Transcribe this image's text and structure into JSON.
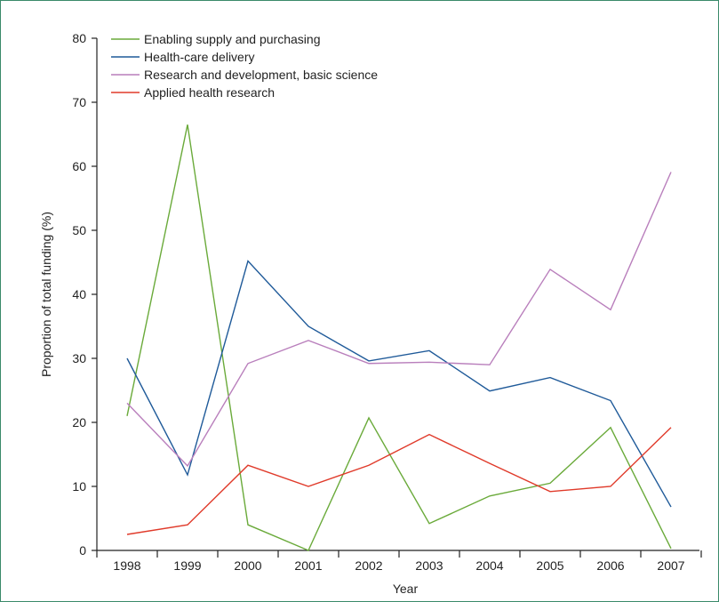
{
  "chart_data": {
    "type": "line",
    "xlabel": "Year",
    "ylabel": "Proportion of total funding (%)",
    "categories": [
      "1998",
      "1999",
      "2000",
      "2001",
      "2002",
      "2003",
      "2004",
      "2005",
      "2006",
      "2007"
    ],
    "ylim": [
      0,
      80
    ],
    "yticks": [
      0,
      10,
      20,
      30,
      40,
      50,
      60,
      70,
      80
    ],
    "grid": false,
    "legend_position": "top-left",
    "series": [
      {
        "name": "Enabling supply and purchasing",
        "color": "#6aaa3a",
        "values": [
          21,
          66.5,
          4,
          0,
          20.7,
          4.2,
          8.5,
          10.5,
          19.2,
          0.3
        ]
      },
      {
        "name": "Health-care delivery",
        "color": "#1f5a99",
        "values": [
          30,
          11.8,
          45.2,
          35,
          29.6,
          31.2,
          24.9,
          27,
          23.4,
          6.8
        ]
      },
      {
        "name": "Research and development, basic science",
        "color": "#b97fbc",
        "values": [
          23,
          13.2,
          29.2,
          32.8,
          29.2,
          29.4,
          29,
          43.9,
          37.6,
          59.1
        ]
      },
      {
        "name": "Applied health research",
        "color": "#e03a2a",
        "values": [
          2.5,
          4,
          13.3,
          10,
          13.3,
          18.1,
          13.6,
          9.2,
          10,
          19.2
        ]
      }
    ]
  }
}
